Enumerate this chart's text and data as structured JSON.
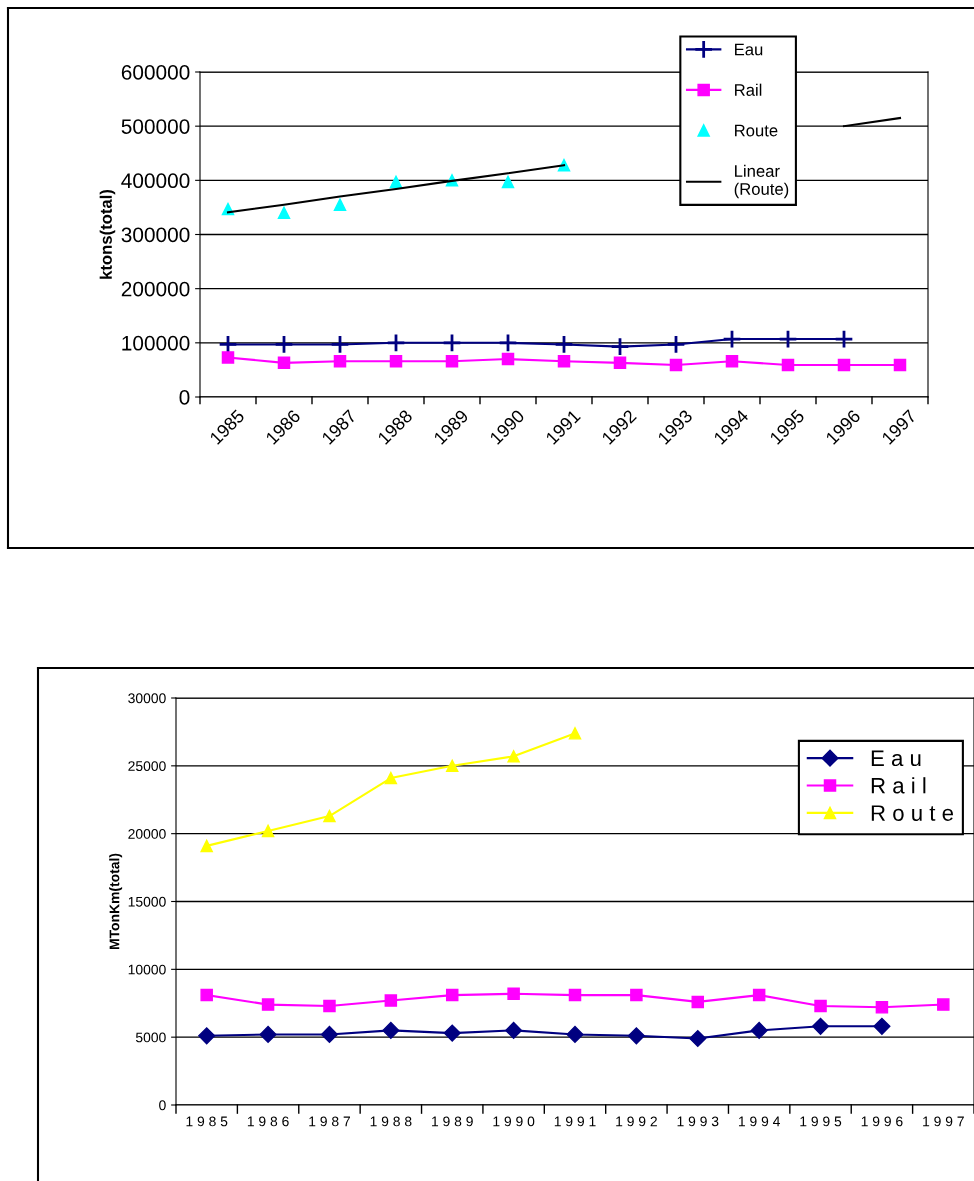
{
  "chart_data": [
    {
      "type": "line",
      "ylabel": "ktons(total)",
      "categories": [
        "1985",
        "1986",
        "1987",
        "1988",
        "1989",
        "1990",
        "1991",
        "1992",
        "1993",
        "1994",
        "1995",
        "1996",
        "1997"
      ],
      "ylim": [
        0,
        600000
      ],
      "yticks": [
        0,
        100000,
        200000,
        300000,
        400000,
        500000,
        600000
      ],
      "grid": "y",
      "legend": "top right",
      "series": [
        {
          "name": "Eau",
          "color": "#000080",
          "marker": "cross",
          "values": [
            97000,
            97000,
            97000,
            100000,
            100000,
            100000,
            97000,
            93000,
            97000,
            107000,
            107000,
            107000,
            null
          ]
        },
        {
          "name": "Rail",
          "color": "#ff00ff",
          "marker": "square",
          "values": [
            73000,
            63000,
            66000,
            66000,
            66000,
            70000,
            66000,
            63000,
            59000,
            66000,
            59000,
            59000,
            59000
          ]
        },
        {
          "name": "Route",
          "type": "scatter",
          "color": "#00ffff",
          "marker": "triangle",
          "values": [
            347000,
            340000,
            355000,
            397000,
            400000,
            397000,
            428000,
            null,
            null,
            null,
            null,
            null,
            null
          ]
        },
        {
          "name": "Linear\n(Route)",
          "color": "#000000",
          "marker": "none",
          "values": [
            341000,
            355000,
            370000,
            384000,
            399000,
            413000,
            428000,
            null,
            null,
            null,
            null,
            500000,
            515000
          ]
        }
      ]
    },
    {
      "type": "line",
      "ylabel": "MTonKm(total)",
      "categories": [
        "1 9 8 5",
        "1 9 8 6",
        "1 9 8 7",
        "1 9 8 8",
        "1 9 8 9",
        "1 9 9 0",
        "1 9 9 1",
        "1 9 9 2",
        "1 9 9 3",
        "1 9 9 4",
        "1 9 9 5",
        "1 9 9 6",
        "1 9 9 7"
      ],
      "ylim": [
        0,
        30000
      ],
      "yticks": [
        0,
        5000,
        10000,
        15000,
        20000,
        25000,
        30000
      ],
      "grid": "y",
      "legend": "right",
      "series": [
        {
          "name": "E a u",
          "color": "#000080",
          "marker": "diamond",
          "values": [
            5100,
            5200,
            5200,
            5500,
            5300,
            5500,
            5200,
            5100,
            4900,
            5500,
            5800,
            5800,
            null
          ]
        },
        {
          "name": "R a i l",
          "color": "#ff00ff",
          "marker": "square",
          "values": [
            8100,
            7400,
            7300,
            7700,
            8100,
            8200,
            8100,
            8100,
            7600,
            8100,
            7300,
            7200,
            7400
          ]
        },
        {
          "name": "R o u t e",
          "color": "#ffff00",
          "marker": "triangle",
          "values": [
            19100,
            20200,
            21300,
            24100,
            25000,
            25700,
            27400,
            null,
            null,
            null,
            null,
            null,
            null
          ]
        }
      ]
    }
  ]
}
